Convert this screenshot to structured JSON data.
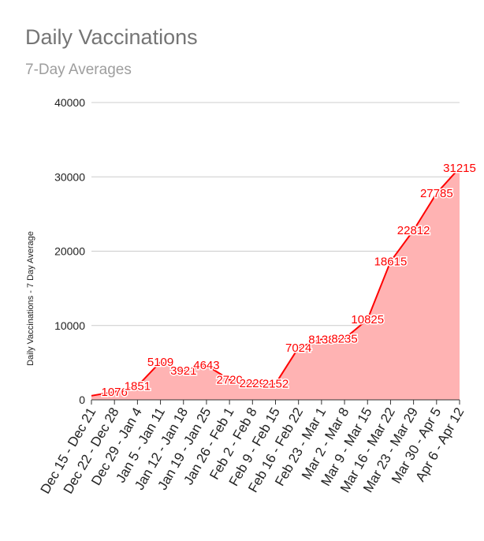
{
  "chart_data": {
    "type": "area",
    "title": "Daily Vaccinations",
    "subtitle": "7-Day Averages",
    "xlabel": "",
    "ylabel": "Daily Vaccinations - 7 Day Average",
    "ylim": [
      0,
      40000
    ],
    "yticks": [
      0,
      10000,
      20000,
      30000,
      40000
    ],
    "grid": true,
    "categories": [
      "Dec 15 - Dec 21",
      "Dec 22 - Dec 28",
      "Dec 29 - Jan 4",
      "Jan 5 - Jan 11",
      "Jan 12 - Jan 18",
      "Jan 19 - Jan 25",
      "Jan 26 - Feb 1",
      "Feb 2 - Feb 8",
      "Feb 9 - Feb 15",
      "Feb 16 - Feb 22",
      "Feb 23 - Mar 1",
      "Mar 2 - Mar 8",
      "Mar 9 - Mar 15",
      "Mar 16 - Mar 22",
      "Mar 23 - Mar 29",
      "Mar 30 - Apr 5",
      "Apr 6 - Apr 12"
    ],
    "series": [
      {
        "name": "Daily Vaccinations - 7 Day Average",
        "values": [
          550,
          1076,
          1851,
          5109,
          3921,
          4643,
          2720,
          2229,
          2152,
          7024,
          8138,
          8235,
          10825,
          18615,
          22812,
          27785,
          31215
        ],
        "labels": [
          "",
          "1076",
          "1851",
          "5109",
          "3921",
          "4643",
          "2720",
          "2229",
          "2152",
          "7024",
          "8138",
          "8235",
          "10825",
          "18615",
          "22812",
          "27785",
          "31215"
        ]
      }
    ],
    "colors": {
      "line": "#ff0000",
      "fill": "#ffb3b3",
      "label": "#ff0000"
    }
  }
}
